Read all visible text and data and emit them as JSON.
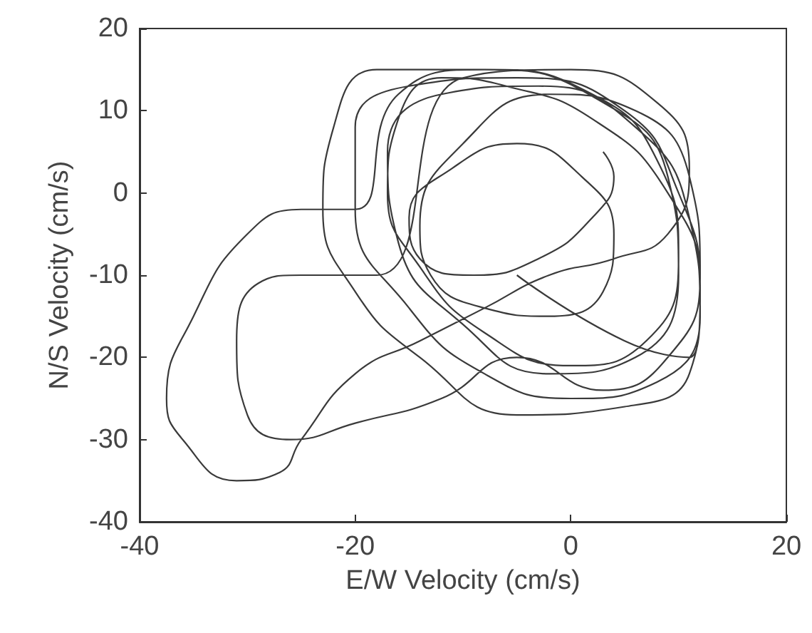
{
  "chart_data": {
    "type": "line",
    "xlabel": "E/W Velocity (cm/s)",
    "ylabel": "N/S Velocity (cm/s)",
    "xlim": [
      -40,
      20
    ],
    "xticks": [
      -40,
      -20,
      0,
      20
    ],
    "ylim": [
      -40,
      20
    ],
    "yticks": [
      -40,
      -30,
      -20,
      -10,
      0,
      10,
      20
    ],
    "grid": false,
    "marker": "none",
    "line_style": "solid",
    "series": [
      {
        "color": "#3a3a3a",
        "x": [
          -5,
          5,
          11,
          12,
          10,
          5,
          -5,
          -15,
          -20,
          -20,
          -15,
          -8,
          0,
          8,
          12,
          11,
          6,
          -3,
          -12,
          -17,
          -16,
          -10,
          -2,
          6,
          10,
          9,
          3,
          -8,
          -18,
          -22,
          -23,
          -20,
          -14,
          -5,
          5,
          11,
          12,
          9,
          2,
          -6,
          -12,
          -16,
          -17,
          -14,
          -8,
          0,
          7,
          10,
          8,
          2,
          -8,
          -16,
          -20,
          -25,
          -30,
          -35,
          -37.5,
          -36,
          -31,
          -27,
          -25,
          -20,
          -14,
          -8,
          -2,
          4,
          9,
          11,
          8,
          0,
          -10,
          -18,
          -25,
          -29,
          -31,
          -30,
          -26,
          -20,
          -12,
          -5,
          3,
          9,
          12,
          11,
          6,
          -2,
          -10,
          -14,
          -13,
          -8,
          -2,
          3,
          4,
          1,
          -5,
          -11,
          -15,
          -14,
          -9,
          -3,
          2,
          4,
          3
        ],
        "values": [
          -10,
          -18,
          -20,
          -12,
          0,
          10,
          14,
          13,
          8,
          -2,
          -14,
          -22,
          -25,
          -23,
          -15,
          -3,
          8,
          13,
          12,
          5,
          -6,
          -16,
          -22,
          -20,
          -10,
          2,
          11,
          15,
          15,
          8,
          -2,
          -12,
          -20,
          -27,
          -26,
          -22,
          -12,
          0,
          9,
          13,
          14,
          9,
          0,
          -9,
          -17,
          -21,
          -18,
          -8,
          4,
          12,
          15,
          12,
          -2,
          -2,
          -5,
          -15,
          -25,
          -30,
          -35,
          -34,
          -30,
          -22,
          -18,
          -14,
          -10,
          -8,
          -5,
          3,
          11,
          15,
          14,
          -10,
          -10,
          -11,
          -18,
          -27,
          -30,
          -28,
          -25,
          -20,
          -24,
          -20,
          -10,
          2,
          10,
          12,
          6,
          -4,
          -10,
          -14,
          -15,
          -12,
          -5,
          2,
          6,
          3,
          -3,
          -8,
          -10,
          -8,
          -3,
          2,
          5
        ]
      }
    ]
  }
}
